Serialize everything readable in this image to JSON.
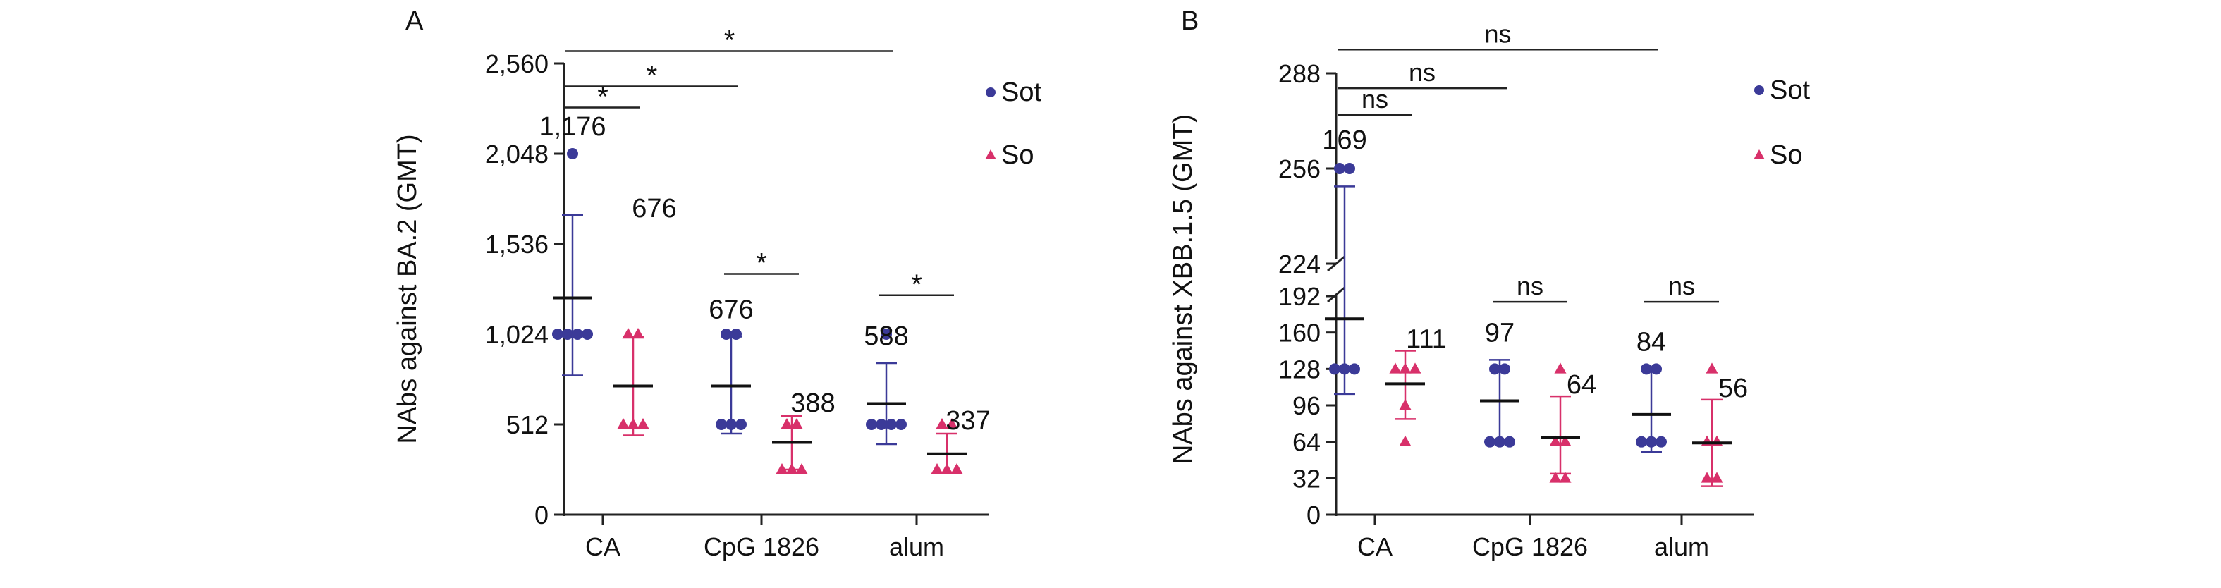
{
  "chart_data": [
    {
      "type": "scatter",
      "panel_label": "A",
      "ylabel": "NAbs against BA.2 (GMT)",
      "ylim": [
        0,
        2560
      ],
      "yticks": [
        0,
        512,
        1024,
        1536,
        2048,
        2560
      ],
      "ytick_labels": [
        "0",
        "512",
        "1,024",
        "1,536",
        "2,048",
        "2,560"
      ],
      "categories": [
        "CA",
        "CpG 1826",
        "alum"
      ],
      "legend": {
        "position": "right",
        "entries": [
          {
            "label": "Sot",
            "marker": "circle"
          },
          {
            "label": "So",
            "marker": "triangle"
          }
        ]
      },
      "series": [
        {
          "name": "Sot",
          "marker": "circle",
          "gmt_labels": [
            "1,176",
            "676",
            "588"
          ],
          "mean": [
            1230,
            730,
            630
          ],
          "error": [
            [
              790,
              1700
            ],
            [
              460,
              1010
            ],
            [
              400,
              860
            ]
          ],
          "points": [
            [
              2048,
              1024,
              1024,
              1024,
              1024
            ],
            [
              1024,
              1024,
              512,
              512,
              512
            ],
            [
              1024,
              512,
              512,
              512,
              512
            ]
          ]
        },
        {
          "name": "So",
          "marker": "triangle",
          "gmt_labels": [
            "676",
            "388",
            "337"
          ],
          "mean": [
            730,
            410,
            345
          ],
          "error": [
            [
              450,
              1010
            ],
            [
              256,
              560
            ],
            [
              240,
              460
            ]
          ],
          "points": [
            [
              1024,
              1024,
              512,
              512,
              512
            ],
            [
              512,
              512,
              256,
              256,
              256
            ],
            [
              512,
              512,
              256,
              256,
              256
            ]
          ]
        }
      ],
      "significance": [
        {
          "from": [
            0,
            0
          ],
          "to": [
            0,
            1
          ],
          "label": "*",
          "value": 2310
        },
        {
          "from": [
            0,
            0
          ],
          "to": [
            1,
            0
          ],
          "label": "*",
          "value": 2430
        },
        {
          "from": [
            0,
            0
          ],
          "to": [
            2,
            0
          ],
          "label": "*",
          "value": 2630
        },
        {
          "from": [
            1,
            0
          ],
          "to": [
            1,
            1
          ],
          "label": "*",
          "value": 1366
        },
        {
          "from": [
            2,
            0
          ],
          "to": [
            2,
            1
          ],
          "label": "*",
          "value": 1245
        }
      ]
    },
    {
      "type": "scatter",
      "panel_label": "B",
      "ylabel": "NAbs against XBB.1.5 (GMT)",
      "ylim": [
        0,
        288
      ],
      "broken_axis": {
        "lower": [
          0,
          192
        ],
        "upper": [
          224,
          288
        ]
      },
      "yticks": [
        0,
        32,
        64,
        96,
        128,
        160,
        192,
        224,
        256,
        288
      ],
      "ytick_labels": [
        "0",
        "32",
        "64",
        "96",
        "128",
        "160",
        "192",
        "224",
        "256",
        "288"
      ],
      "categories": [
        "CA",
        "CpG 1826",
        "alum"
      ],
      "legend": {
        "position": "right",
        "entries": [
          {
            "label": "Sot",
            "marker": "circle"
          },
          {
            "label": "So",
            "marker": "triangle"
          }
        ]
      },
      "series": [
        {
          "name": "Sot",
          "marker": "circle",
          "gmt_labels": [
            "169",
            "97",
            "84"
          ],
          "mean": [
            172,
            100,
            88
          ],
          "error": [
            [
              106,
              250
            ],
            [
              64,
              136
            ],
            [
              55,
              128
            ]
          ],
          "points": [
            [
              256,
              256,
              128,
              128,
              128
            ],
            [
              128,
              128,
              64,
              64,
              64
            ],
            [
              128,
              128,
              64,
              64,
              64
            ]
          ]
        },
        {
          "name": "So",
          "marker": "triangle",
          "gmt_labels": [
            "111",
            "64",
            "56"
          ],
          "mean": [
            115,
            68,
            63
          ],
          "error": [
            [
              84,
              144
            ],
            [
              36,
              104
            ],
            [
              25,
              101
            ]
          ],
          "points": [
            [
              128,
              128,
              128,
              96,
              64
            ],
            [
              128,
              64,
              64,
              32,
              32
            ],
            [
              128,
              64,
              64,
              32,
              32
            ]
          ]
        }
      ],
      "significance": [
        {
          "from": [
            0,
            0
          ],
          "to": [
            0,
            1
          ],
          "label": "ns",
          "value": 274
        },
        {
          "from": [
            0,
            0
          ],
          "to": [
            1,
            0
          ],
          "label": "ns",
          "value": 283
        },
        {
          "from": [
            0,
            0
          ],
          "to": [
            2,
            0
          ],
          "label": "ns",
          "value": 296
        },
        {
          "from": [
            1,
            0
          ],
          "to": [
            1,
            1
          ],
          "label": "ns",
          "value": 187
        },
        {
          "from": [
            2,
            0
          ],
          "to": [
            2,
            1
          ],
          "label": "ns",
          "value": 187
        }
      ]
    }
  ],
  "colors": {
    "Sot": "#3b3a98",
    "So": "#d8306a",
    "mean_line": "#111111",
    "axis": "#222222"
  }
}
